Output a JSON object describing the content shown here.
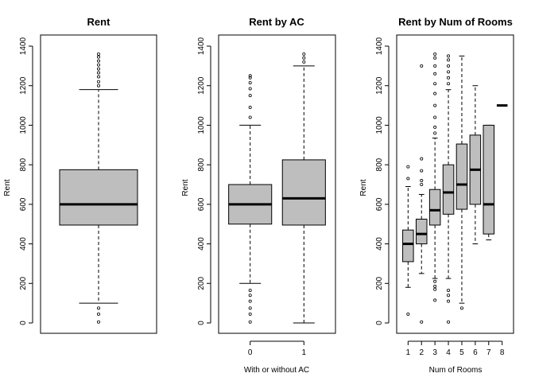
{
  "chart_data": [
    {
      "type": "boxplot",
      "title": "Rent",
      "xlabel": "",
      "ylabel": "Rent",
      "ylim": [
        0,
        1400
      ],
      "yticks": [
        0,
        200,
        400,
        600,
        800,
        1000,
        1200,
        1400
      ],
      "categories": [
        ""
      ],
      "boxes": [
        {
          "whisker_low": 100,
          "q1": 495,
          "median": 600,
          "q3": 775,
          "whisker_high": 1180,
          "outliers": [
            5,
            45,
            75,
            1200,
            1220,
            1245,
            1265,
            1285,
            1305,
            1325,
            1345,
            1360
          ]
        }
      ],
      "fill": "#bebebe"
    },
    {
      "type": "boxplot",
      "title": "Rent by AC",
      "xlabel": "With or without AC",
      "ylabel": "Rent",
      "ylim": [
        0,
        1400
      ],
      "yticks": [
        0,
        200,
        400,
        600,
        800,
        1000,
        1200,
        1400
      ],
      "categories": [
        "0",
        "1"
      ],
      "boxes": [
        {
          "whisker_low": 200,
          "q1": 500,
          "median": 600,
          "q3": 700,
          "whisker_high": 1000,
          "outliers": [
            5,
            45,
            75,
            110,
            140,
            165,
            1040,
            1090,
            1150,
            1185,
            1215,
            1240,
            1250
          ]
        },
        {
          "whisker_low": 0,
          "q1": 495,
          "median": 630,
          "q3": 825,
          "whisker_high": 1300,
          "outliers": [
            1320,
            1340,
            1360
          ]
        }
      ],
      "fill": "#bebebe"
    },
    {
      "type": "boxplot",
      "title": "Rent by Num of Rooms",
      "xlabel": "Num of Rooms",
      "ylabel": "Rent",
      "ylim": [
        0,
        1400
      ],
      "yticks": [
        0,
        200,
        400,
        600,
        800,
        1000,
        1200,
        1400
      ],
      "categories": [
        "1",
        "2",
        "3",
        "4",
        "5",
        "6",
        "7",
        "8"
      ],
      "boxes": [
        {
          "whisker_low": 180,
          "q1": 310,
          "median": 400,
          "q3": 470,
          "whisker_high": 690,
          "outliers": [
            45,
            730,
            790
          ]
        },
        {
          "whisker_low": 250,
          "q1": 400,
          "median": 450,
          "q3": 525,
          "whisker_high": 650,
          "outliers": [
            5,
            700,
            720,
            770,
            830,
            1300
          ]
        },
        {
          "whisker_low": 225,
          "q1": 495,
          "median": 570,
          "q3": 675,
          "whisker_high": 935,
          "outliers": [
            115,
            170,
            185,
            210,
            960,
            990,
            1040,
            1100,
            1160,
            1210,
            1260,
            1300,
            1340,
            1360
          ]
        },
        {
          "whisker_low": 225,
          "q1": 550,
          "median": 660,
          "q3": 800,
          "whisker_high": 1180,
          "outliers": [
            5,
            110,
            140,
            165,
            1210,
            1240,
            1270,
            1300,
            1330,
            1350
          ]
        },
        {
          "whisker_low": 100,
          "q1": 575,
          "median": 700,
          "q3": 905,
          "whisker_high": 1350,
          "outliers": [
            75
          ]
        },
        {
          "whisker_low": 400,
          "q1": 600,
          "median": 775,
          "q3": 950,
          "whisker_high": 1200,
          "outliers": []
        },
        {
          "whisker_low": 420,
          "q1": 450,
          "median": 600,
          "q3": 1000,
          "whisker_high": 1000,
          "outliers": []
        },
        {
          "whisker_low": 1100,
          "q1": 1100,
          "median": 1100,
          "q3": 1100,
          "whisker_high": 1100,
          "outliers": []
        }
      ],
      "fill": "#bebebe"
    }
  ]
}
